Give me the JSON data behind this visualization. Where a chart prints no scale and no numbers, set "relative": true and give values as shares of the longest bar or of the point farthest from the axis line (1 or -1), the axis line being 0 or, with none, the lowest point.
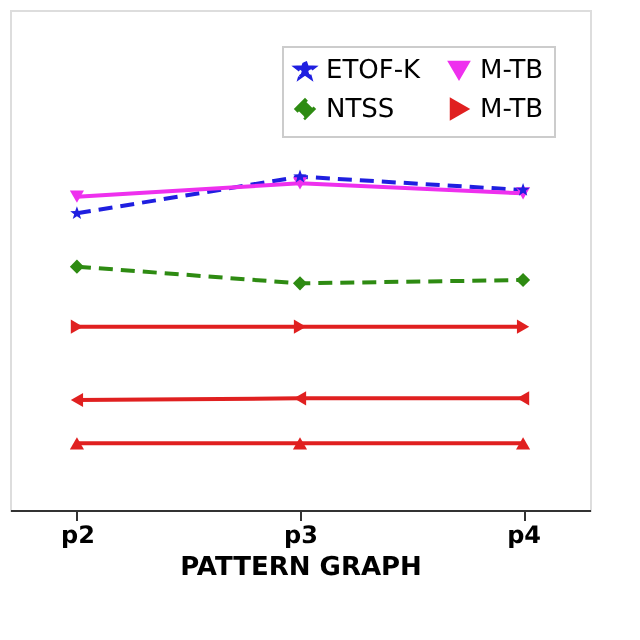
{
  "chart_data": {
    "type": "line",
    "xlabel": "PATTERN GRAPH",
    "categories": [
      "p2",
      "p3",
      "p4"
    ],
    "relative": true,
    "grid": false,
    "legend": "top right",
    "series": [
      {
        "name": "ETOF-K",
        "color": "#1f1fe0",
        "marker": "star",
        "line_style": "dashed",
        "values": [
          0.89,
          1.0,
          0.96
        ]
      },
      {
        "name": "NTSS",
        "color": "#2e8b12",
        "marker": "diamond",
        "line_style": "dashed",
        "values": [
          0.73,
          0.68,
          0.69
        ]
      },
      {
        "name": "M-TB",
        "color": "#ee30ee",
        "marker": "triangle-down",
        "line_style": "solid",
        "values": [
          0.94,
          0.98,
          0.95
        ]
      },
      {
        "name": "M-TB",
        "color": "#e02020",
        "marker": "triangle-right",
        "line_style": "solid",
        "values": [
          0.55,
          0.55,
          0.55
        ]
      },
      {
        "color": "#e02020",
        "marker": "triangle-left",
        "line_style": "solid",
        "values": [
          0.33,
          0.335,
          0.335
        ]
      },
      {
        "color": "#e02020",
        "marker": "triangle",
        "line_style": "solid",
        "values": [
          0.2,
          0.2,
          0.2
        ]
      }
    ]
  }
}
